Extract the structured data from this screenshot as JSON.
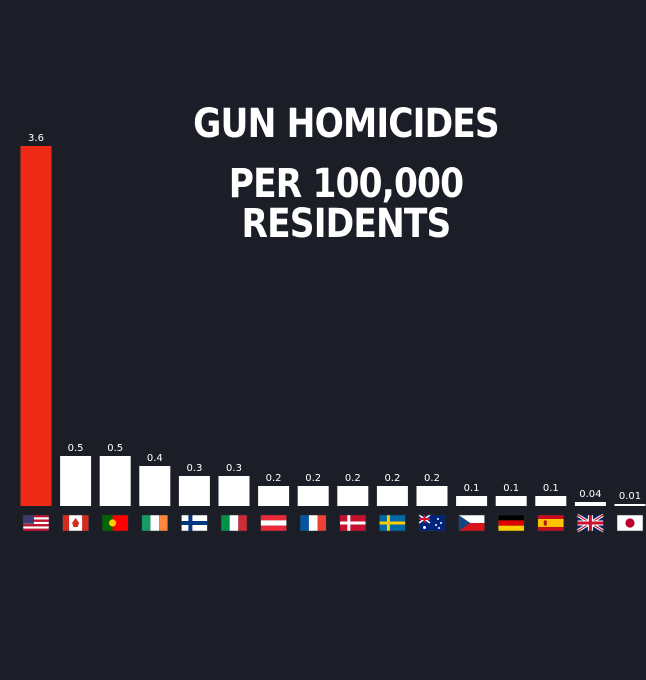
{
  "title_lines": [
    "GUN HOMICIDES",
    "PER 100,000 RESIDENTS"
  ],
  "colors": {
    "background": "#1b1e27",
    "highlight_bar": "#ee2a16",
    "bar": "#ffffff",
    "label": "#ffffff"
  },
  "chart_data": {
    "type": "bar",
    "title": "GUN HOMICIDES PER 100,000 RESIDENTS",
    "categories": [
      "United States",
      "Canada",
      "Portugal",
      "Ireland",
      "Finland",
      "Italy",
      "Austria",
      "France",
      "Denmark",
      "Sweden",
      "Australia",
      "Czech Republic",
      "Germany",
      "Spain",
      "United Kingdom",
      "Japan"
    ],
    "category_icons": [
      "us-flag-icon",
      "canada-flag-icon",
      "portugal-flag-icon",
      "ireland-flag-icon",
      "finland-flag-icon",
      "italy-flag-icon",
      "austria-flag-icon",
      "france-flag-icon",
      "denmark-flag-icon",
      "sweden-flag-icon",
      "australia-flag-icon",
      "czech-flag-icon",
      "germany-flag-icon",
      "spain-flag-icon",
      "uk-flag-icon",
      "japan-flag-icon"
    ],
    "values": [
      3.6,
      0.5,
      0.5,
      0.4,
      0.3,
      0.3,
      0.2,
      0.2,
      0.2,
      0.2,
      0.2,
      0.1,
      0.1,
      0.1,
      0.04,
      0.01
    ],
    "value_labels": [
      "3.6",
      "0.5",
      "0.5",
      "0.4",
      "0.3",
      "0.3",
      "0.2",
      "0.2",
      "0.2",
      "0.2",
      "0.2",
      "0.1",
      "0.1",
      "0.1",
      "0.04",
      "0.01"
    ],
    "ylim": [
      0,
      3.6
    ],
    "highlight_index": 0,
    "grid": false,
    "legend": "none"
  }
}
